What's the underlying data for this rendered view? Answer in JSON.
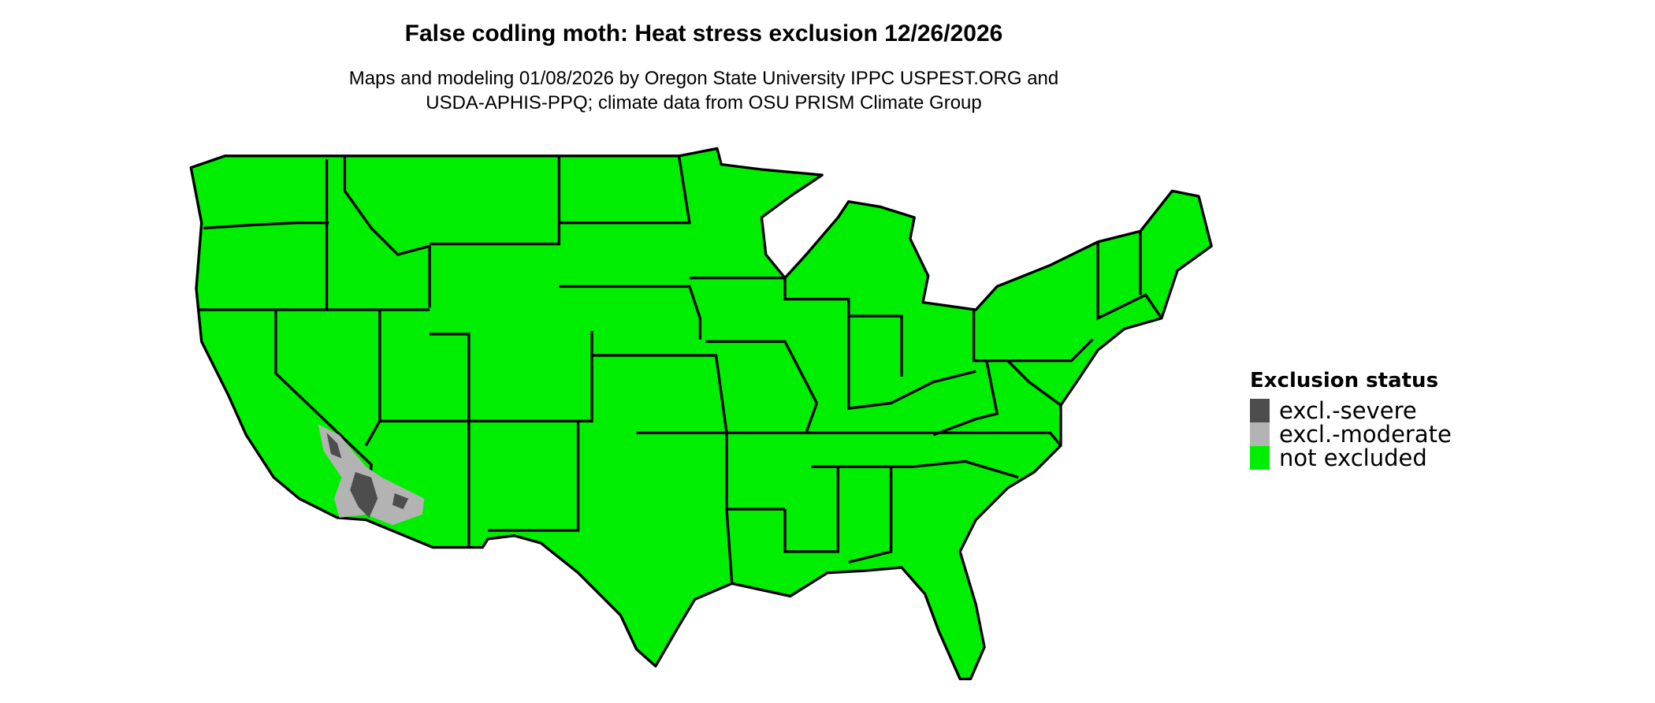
{
  "title": "False codling moth: Heat stress exclusion 12/26/2026",
  "subtitle_lines": [
    "Maps and modeling 01/08/2026 by Oregon State University IPPC USPEST.ORG and",
    "USDA-APHIS-PPQ; climate data from OSU PRISM Climate Group"
  ],
  "map": {
    "region": "Contiguous United States",
    "base_color": "#00EE00",
    "border_color": "#000000"
  },
  "legend": {
    "title": "Exclusion status",
    "items": [
      {
        "label": "excl.-severe",
        "color": "#4D4D4D"
      },
      {
        "label": "excl.-moderate",
        "color": "#B3B3B3"
      },
      {
        "label": "not excluded",
        "color": "#00EE00"
      }
    ]
  }
}
